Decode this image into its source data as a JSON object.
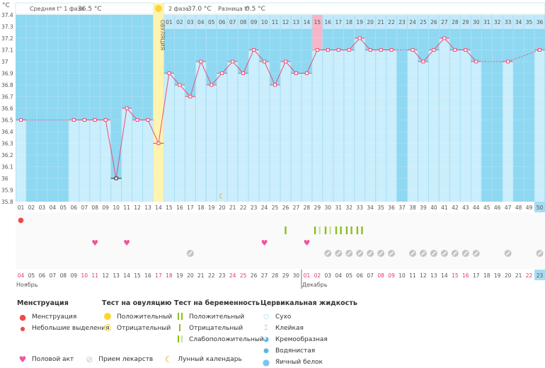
{
  "chart_data": {
    "type": "bar",
    "yunit": "°C",
    "ylim": [
      35.8,
      37.4
    ],
    "yticks": [
      "35.8",
      "35.9",
      "36",
      "36.1",
      "36.2",
      "36.3",
      "36.4",
      "36.5",
      "36.6",
      "36.7",
      "36.8",
      "36.9",
      "37",
      "37.1",
      "37.2",
      "37.3",
      "37.4"
    ],
    "cycle_days": [
      "01",
      "02",
      "03",
      "04",
      "05",
      "06",
      "07",
      "08",
      "09",
      "10",
      "11",
      "12",
      "13",
      "14",
      "15",
      "16",
      "17",
      "18",
      "19",
      "20",
      "21",
      "22",
      "23",
      "24",
      "25",
      "26",
      "27",
      "28",
      "29",
      "30",
      "31",
      "32",
      "33",
      "34",
      "35",
      "36",
      "37",
      "38",
      "39",
      "40",
      "41",
      "42",
      "43",
      "44",
      "45",
      "46",
      "47",
      "48",
      "49",
      "50"
    ],
    "temperatures": [
      36.5,
      null,
      null,
      null,
      null,
      36.5,
      36.5,
      36.5,
      36.5,
      36.0,
      36.6,
      36.5,
      36.5,
      36.3,
      36.9,
      36.8,
      36.7,
      37.0,
      36.8,
      36.9,
      37.0,
      36.9,
      37.1,
      37.0,
      36.8,
      37.0,
      36.9,
      36.9,
      37.1,
      37.1,
      37.1,
      37.1,
      37.2,
      37.1,
      37.1,
      37.1,
      null,
      37.1,
      37.0,
      37.1,
      37.2,
      37.1,
      37.1,
      37.0,
      null,
      null,
      37.0,
      null,
      null,
      37.1
    ],
    "flagged_low_day": 10,
    "ovulation_day": 14,
    "ovulation_label": "ОВУЛЯЦИЯ",
    "phase2_days": [
      "01",
      "02",
      "03",
      "04",
      "05",
      "06",
      "07",
      "08",
      "09",
      "10",
      "11",
      "12",
      "13",
      "14",
      "15",
      "16",
      "17",
      "18",
      "19",
      "20",
      "21",
      "22",
      "23",
      "24",
      "25",
      "26",
      "27",
      "28",
      "29",
      "30",
      "31",
      "32",
      "33",
      "34",
      "35",
      "36"
    ],
    "phase2_highlight": "15",
    "dates": [
      "04",
      "05",
      "06",
      "07",
      "08",
      "09",
      "10",
      "11",
      "12",
      "13",
      "14",
      "15",
      "16",
      "17",
      "18",
      "19",
      "20",
      "21",
      "22",
      "23",
      "24",
      "25",
      "26",
      "27",
      "28",
      "29",
      "30",
      "01",
      "02",
      "03",
      "04",
      "05",
      "06",
      "07",
      "08",
      "09",
      "10",
      "11",
      "12",
      "13",
      "14",
      "15",
      "16",
      "17",
      "18",
      "19",
      "20",
      "21",
      "22",
      "23"
    ],
    "weekend_dates_idx": [
      1,
      7,
      8,
      14,
      15,
      21,
      22,
      28,
      29,
      35,
      36,
      42,
      43,
      49
    ],
    "months": [
      {
        "label": "Ноябрь",
        "start_day": 1
      },
      {
        "label": "Декабрь",
        "start_day": 28
      }
    ],
    "today_day": 50,
    "menstruation_days": [
      1
    ],
    "intercourse_days": [
      8,
      11,
      24,
      28
    ],
    "medication_days": [
      17,
      30,
      31,
      32,
      33,
      34,
      35,
      36,
      38,
      39,
      40,
      41,
      42,
      43,
      44,
      47,
      50
    ],
    "moon_days": [
      20
    ],
    "pregnancy_tests": [
      {
        "day": 26,
        "bars": [
          "positive"
        ]
      },
      {
        "day": 29,
        "bars": [
          "positive",
          "weak"
        ]
      },
      {
        "day": 30,
        "bars": [
          "positive",
          "weak"
        ]
      },
      {
        "day": 31,
        "bars": [
          "positive",
          "positive"
        ]
      },
      {
        "day": 32,
        "bars": [
          "positive",
          "positive"
        ]
      },
      {
        "day": 33,
        "bars": [
          "positive",
          "positive"
        ]
      }
    ],
    "colors": {
      "bg_dark": "#8fd8f2",
      "bar": "#cbeefc",
      "line": "#e8527a",
      "ovulation": "#fff3b0",
      "highlight": "#f7b6c8",
      "weekend": "#e8336b",
      "test_positive": "#8cbf1a",
      "test_weak": "#c9e29a",
      "pill": "#c4c4c4",
      "heart": "#f1549c",
      "drop": "#f04848",
      "moon": "#f39a12"
    }
  },
  "header": {
    "phase1_label": "Средняя t° 1 фаза",
    "phase1_value": "36.5 °C",
    "phase2_label": "2 фаза",
    "phase2_value": "37.0 °C",
    "diff_label": "Разница t°",
    "diff_value": "0.5 °C"
  },
  "legend": {
    "menstruation": {
      "title": "Менструация",
      "items": [
        "Менструация",
        "Небольшие выделения"
      ]
    },
    "ovulation_test": {
      "title": "Тест на овуляцию",
      "items": [
        "Положительный",
        "Отрицательный"
      ]
    },
    "pregnancy_test": {
      "title": "Тест на беременность",
      "items": [
        "Положительный",
        "Отрицательный",
        "Слабоположительный"
      ]
    },
    "cervical": {
      "title": "Цервикальная жидкость",
      "items": [
        "Сухо",
        "Клейкая",
        "Кремообразная",
        "Водянистая",
        "Яичный белок"
      ]
    },
    "other": [
      "Половой акт",
      "Прием лекарств",
      "Лунный календарь"
    ]
  }
}
